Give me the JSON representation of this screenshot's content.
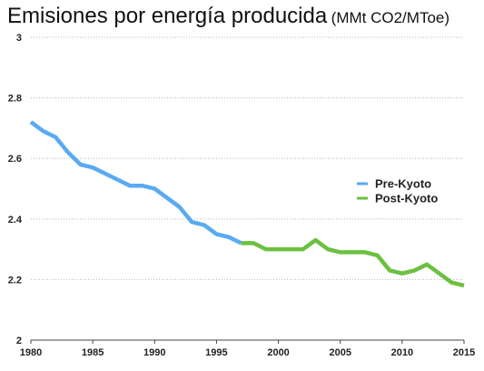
{
  "chart_data": {
    "type": "line",
    "title": "Emisiones por energía producida",
    "title_unit": "(MMt CO2/MToe)",
    "xlabel": "",
    "ylabel": "",
    "xlim": [
      1980,
      2015
    ],
    "ylim": [
      2,
      3
    ],
    "x_ticks": [
      1980,
      1985,
      1990,
      1995,
      2000,
      2005,
      2010,
      2015
    ],
    "y_ticks": [
      2,
      2.2,
      2.4,
      2.6,
      2.8,
      3
    ],
    "y_tick_labels": [
      "2",
      "2.2",
      "2.4",
      "2.6",
      "2.8",
      "3"
    ],
    "grid": "horizontal dotted",
    "legend_position": "right",
    "series": [
      {
        "name": "Pre-Kyoto",
        "color": "#5aaaf2",
        "x": [
          1980,
          1981,
          1982,
          1983,
          1984,
          1985,
          1986,
          1987,
          1988,
          1989,
          1990,
          1991,
          1992,
          1993,
          1994,
          1995,
          1996,
          1997
        ],
        "y": [
          2.72,
          2.69,
          2.67,
          2.62,
          2.58,
          2.57,
          2.55,
          2.53,
          2.51,
          2.51,
          2.5,
          2.47,
          2.44,
          2.39,
          2.38,
          2.35,
          2.34,
          2.32
        ]
      },
      {
        "name": "Post-Kyoto",
        "color": "#6cc040",
        "x": [
          1997,
          1998,
          1999,
          2000,
          2001,
          2002,
          2003,
          2004,
          2005,
          2006,
          2007,
          2008,
          2009,
          2010,
          2011,
          2012,
          2013,
          2014,
          2015
        ],
        "y": [
          2.32,
          2.32,
          2.3,
          2.3,
          2.3,
          2.3,
          2.33,
          2.3,
          2.29,
          2.29,
          2.29,
          2.28,
          2.23,
          2.22,
          2.23,
          2.25,
          2.22,
          2.19,
          2.18
        ]
      }
    ]
  }
}
